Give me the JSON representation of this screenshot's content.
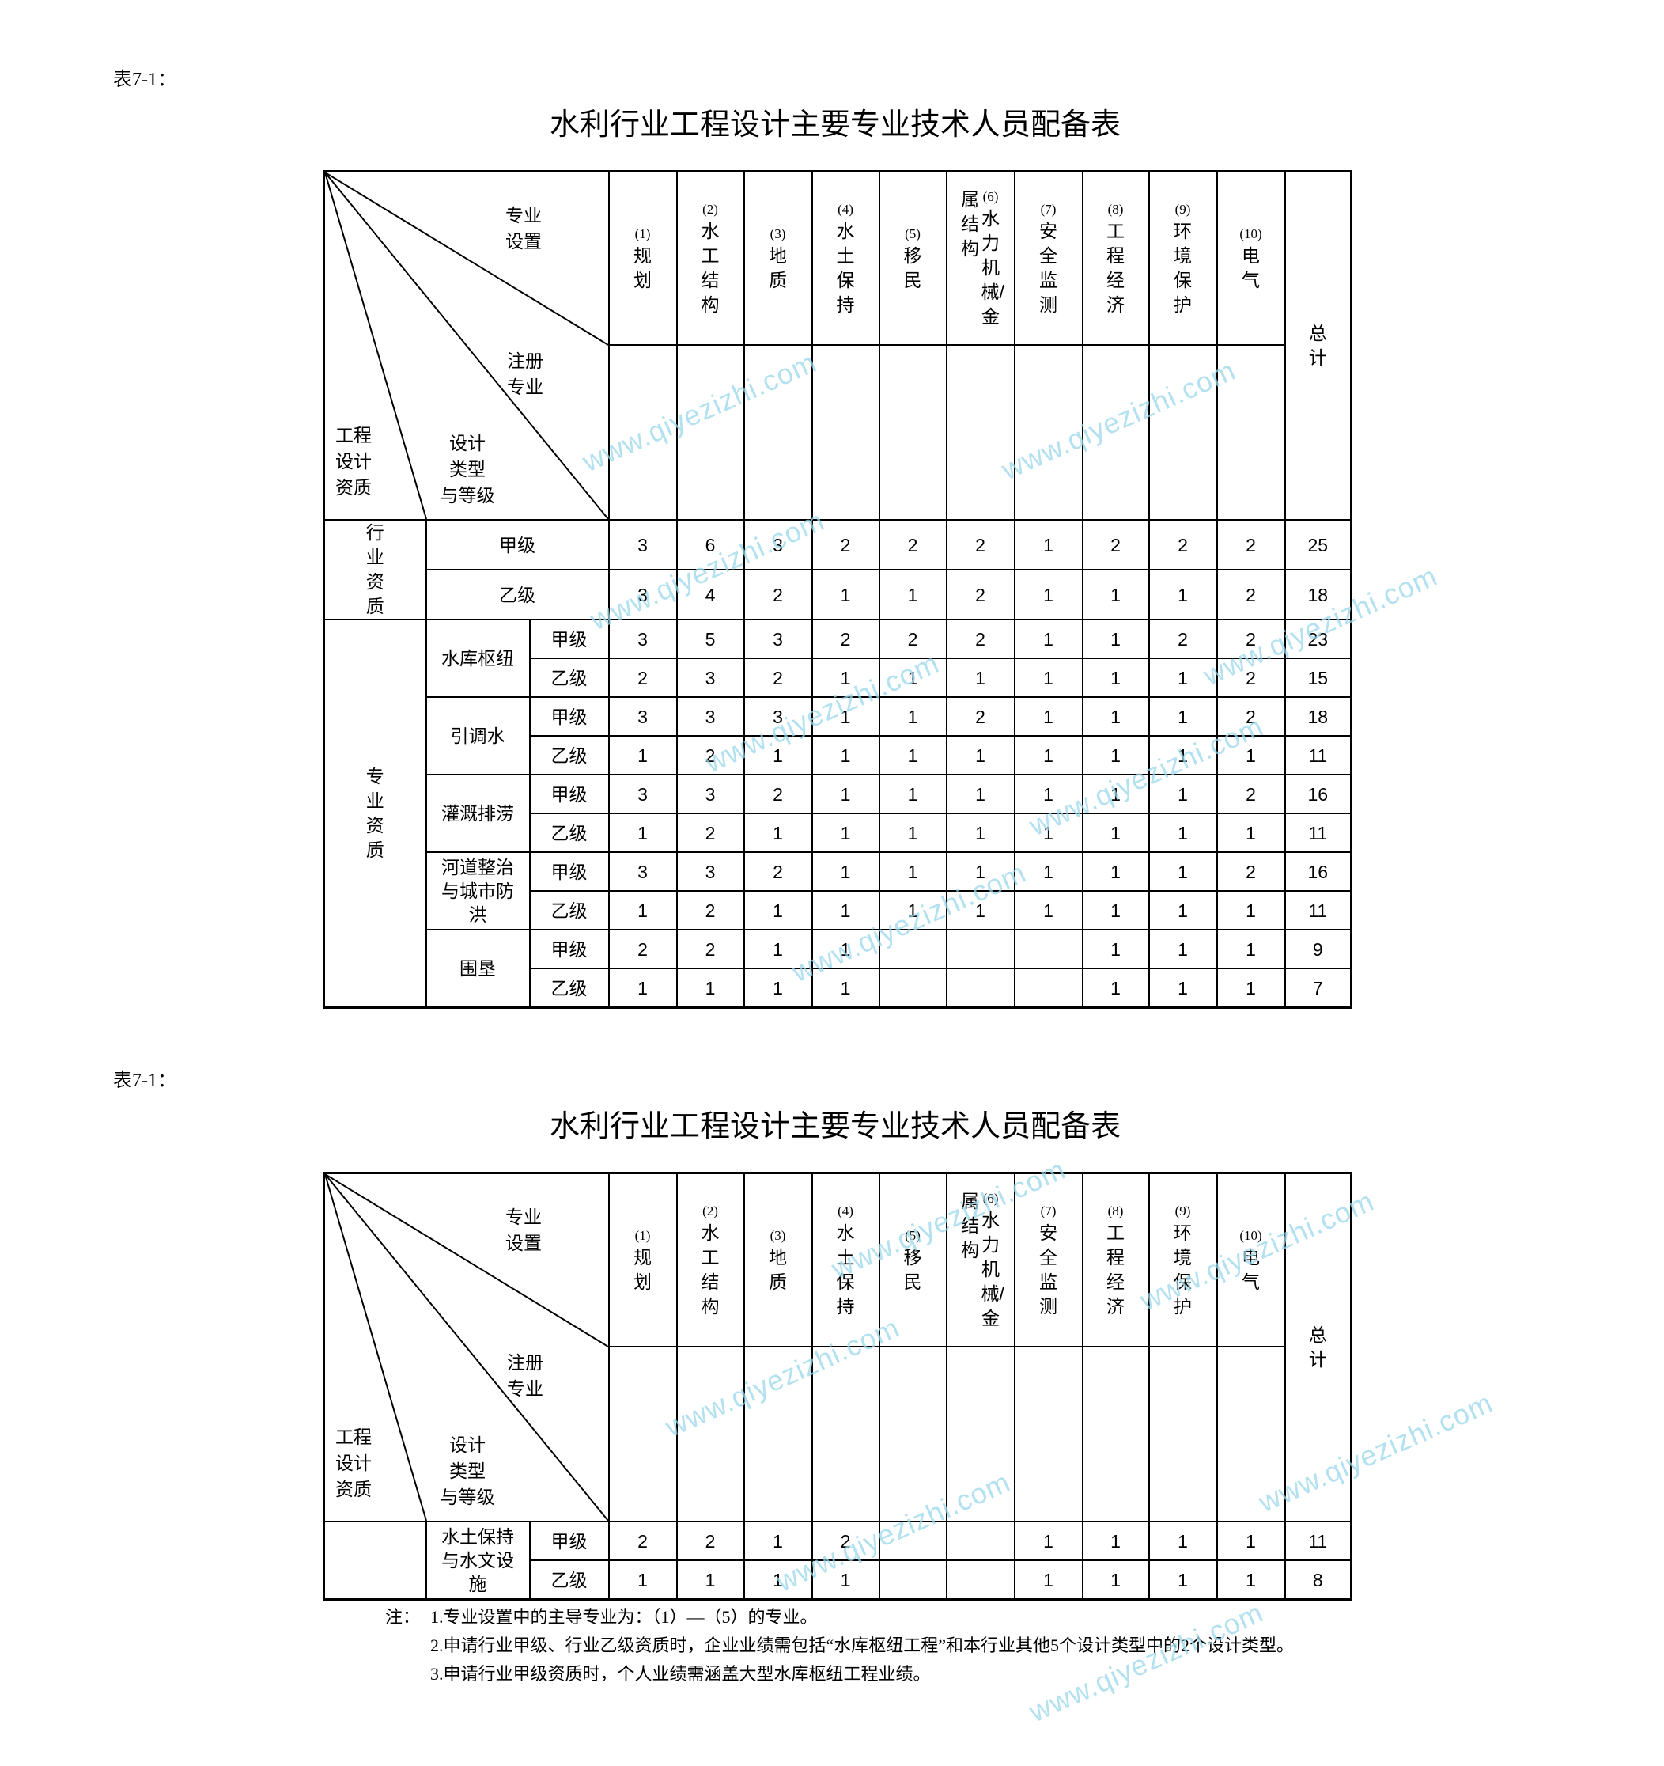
{
  "header": {
    "diag_labels": {
      "specialty_setting": "专业设置",
      "registered_specialty": "注册专业",
      "design_type_line1": "设计",
      "design_type_line2": "类型",
      "design_type_line3": "与等级",
      "qualification_line1": "工程",
      "qualification_line2": "设计",
      "qualification_line3": "资质"
    },
    "columns": [
      {
        "num": "(1)",
        "name": "规划"
      },
      {
        "num": "(2)",
        "name": "水工结构"
      },
      {
        "num": "(3)",
        "name": "地质"
      },
      {
        "num": "(4)",
        "name": "水土保持"
      },
      {
        "num": "(5)",
        "name": "移民"
      },
      {
        "num": "(6)",
        "name": "水力机械/金",
        "name_cont": "属结构"
      },
      {
        "num": "(7)",
        "name": "安全监测"
      },
      {
        "num": "(8)",
        "name": "工程经济"
      },
      {
        "num": "(9)",
        "name": "环境保护"
      },
      {
        "num": "(10)",
        "name": "电气"
      }
    ],
    "total": "总计"
  },
  "tables": [
    {
      "caption": "表7-1：",
      "title": "水利行业工程设计主要专业技术人员配备表",
      "groups": [
        {
          "category": "行业资质",
          "items": [
            {
              "type": null,
              "grades": [
                {
                  "grade": "甲级",
                  "values": [
                    "3",
                    "6",
                    "3",
                    "2",
                    "2",
                    "2",
                    "1",
                    "2",
                    "2",
                    "2",
                    "25"
                  ]
                },
                {
                  "grade": "乙级",
                  "values": [
                    "3",
                    "4",
                    "2",
                    "1",
                    "1",
                    "2",
                    "1",
                    "1",
                    "1",
                    "2",
                    "18"
                  ]
                }
              ]
            }
          ]
        },
        {
          "category": "专业资质",
          "items": [
            {
              "type": "水库枢纽",
              "grades": [
                {
                  "grade": "甲级",
                  "values": [
                    "3",
                    "5",
                    "3",
                    "2",
                    "2",
                    "2",
                    "1",
                    "1",
                    "2",
                    "2",
                    "23"
                  ]
                },
                {
                  "grade": "乙级",
                  "values": [
                    "2",
                    "3",
                    "2",
                    "1",
                    "1",
                    "1",
                    "1",
                    "1",
                    "1",
                    "2",
                    "15"
                  ]
                }
              ]
            },
            {
              "type": "引调水",
              "grades": [
                {
                  "grade": "甲级",
                  "values": [
                    "3",
                    "3",
                    "3",
                    "1",
                    "1",
                    "2",
                    "1",
                    "1",
                    "1",
                    "2",
                    "18"
                  ]
                },
                {
                  "grade": "乙级",
                  "values": [
                    "1",
                    "2",
                    "1",
                    "1",
                    "1",
                    "1",
                    "1",
                    "1",
                    "1",
                    "1",
                    "11"
                  ]
                }
              ]
            },
            {
              "type": "灌溉排涝",
              "grades": [
                {
                  "grade": "甲级",
                  "values": [
                    "3",
                    "3",
                    "2",
                    "1",
                    "1",
                    "1",
                    "1",
                    "1",
                    "1",
                    "2",
                    "16"
                  ]
                },
                {
                  "grade": "乙级",
                  "values": [
                    "1",
                    "2",
                    "1",
                    "1",
                    "1",
                    "1",
                    "1",
                    "1",
                    "1",
                    "1",
                    "11"
                  ]
                }
              ]
            },
            {
              "type": "河道整治与城市防洪",
              "grades": [
                {
                  "grade": "甲级",
                  "values": [
                    "3",
                    "3",
                    "2",
                    "1",
                    "1",
                    "1",
                    "1",
                    "1",
                    "1",
                    "2",
                    "16"
                  ]
                },
                {
                  "grade": "乙级",
                  "values": [
                    "1",
                    "2",
                    "1",
                    "1",
                    "1",
                    "1",
                    "1",
                    "1",
                    "1",
                    "1",
                    "11"
                  ]
                }
              ]
            },
            {
              "type": "围垦",
              "grades": [
                {
                  "grade": "甲级",
                  "values": [
                    "2",
                    "2",
                    "1",
                    "1",
                    "",
                    "",
                    "",
                    "1",
                    "1",
                    "1",
                    "9"
                  ]
                },
                {
                  "grade": "乙级",
                  "values": [
                    "1",
                    "1",
                    "1",
                    "1",
                    "",
                    "",
                    "",
                    "1",
                    "1",
                    "1",
                    "7"
                  ]
                }
              ]
            }
          ]
        }
      ]
    },
    {
      "caption": "表7-1：",
      "title": "水利行业工程设计主要专业技术人员配备表",
      "groups": [
        {
          "category": "",
          "items": [
            {
              "type": "水土保持与水文设施",
              "grades": [
                {
                  "grade": "甲级",
                  "values": [
                    "2",
                    "2",
                    "1",
                    "2",
                    "",
                    "",
                    "1",
                    "1",
                    "1",
                    "1",
                    "11"
                  ]
                },
                {
                  "grade": "乙级",
                  "values": [
                    "1",
                    "1",
                    "1",
                    "1",
                    "",
                    "",
                    "1",
                    "1",
                    "1",
                    "1",
                    "8"
                  ]
                }
              ]
            }
          ]
        }
      ]
    }
  ],
  "notes": {
    "label": "注：",
    "items": [
      "1.专业设置中的主导专业为：（1）—（5）的专业。",
      "2.申请行业甲级、行业乙级资质时，企业业绩需包括“水库枢纽工程”和本行业其他5个设计类型中的2个设计类型。",
      "3.申请行业甲级资质时，个人业绩需涵盖大型水库枢纽工程业绩。"
    ]
  },
  "watermark": "www.qiyezizhi.com",
  "colors": {
    "watermark": "#9ad8ec",
    "lines": "#000000"
  }
}
